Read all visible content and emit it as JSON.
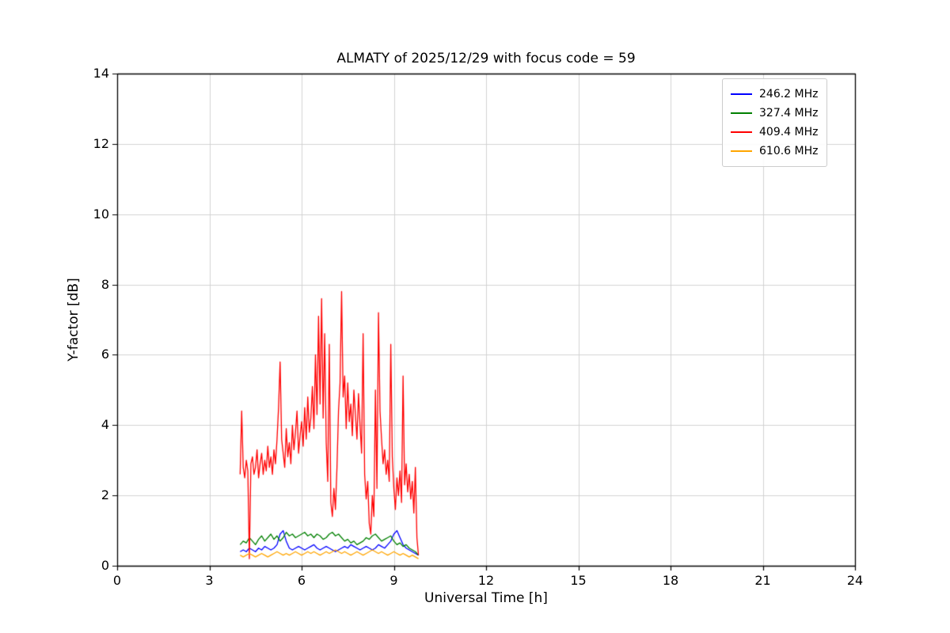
{
  "colors": {
    "background": "#ffffff",
    "axis": "#000000",
    "grid": "#d3d3d3",
    "legend_border": "#cccccc"
  },
  "chart_data": {
    "type": "line",
    "title": "ALMATY of 2025/12/29 with focus code = 59",
    "xlabel": "Universal Time [h]",
    "ylabel": "Y-factor [dB]",
    "xlim": [
      0,
      24
    ],
    "ylim": [
      0,
      14
    ],
    "x_ticks": [
      0,
      3,
      6,
      9,
      12,
      15,
      18,
      21,
      24
    ],
    "y_ticks": [
      0,
      2,
      4,
      6,
      8,
      10,
      12,
      14
    ],
    "grid": true,
    "legend_position": "upper right",
    "series": [
      {
        "name": "246.2 MHz",
        "color": "#0000ff",
        "x": [
          4.0,
          4.1,
          4.2,
          4.3,
          4.4,
          4.5,
          4.6,
          4.7,
          4.8,
          4.9,
          5.0,
          5.1,
          5.2,
          5.3,
          5.4,
          5.5,
          5.6,
          5.7,
          5.8,
          5.9,
          6.0,
          6.1,
          6.2,
          6.3,
          6.4,
          6.5,
          6.6,
          6.7,
          6.8,
          6.9,
          7.0,
          7.1,
          7.2,
          7.3,
          7.4,
          7.5,
          7.6,
          7.7,
          7.8,
          7.9,
          8.0,
          8.1,
          8.2,
          8.3,
          8.4,
          8.5,
          8.6,
          8.7,
          8.8,
          8.9,
          9.0,
          9.1,
          9.2,
          9.3,
          9.4,
          9.5,
          9.6,
          9.7,
          9.8
        ],
        "values": [
          0.4,
          0.45,
          0.4,
          0.5,
          0.45,
          0.4,
          0.5,
          0.45,
          0.55,
          0.5,
          0.45,
          0.5,
          0.6,
          0.9,
          1.0,
          0.7,
          0.5,
          0.45,
          0.5,
          0.55,
          0.5,
          0.45,
          0.5,
          0.55,
          0.6,
          0.5,
          0.45,
          0.5,
          0.55,
          0.5,
          0.45,
          0.4,
          0.45,
          0.5,
          0.55,
          0.5,
          0.6,
          0.55,
          0.5,
          0.45,
          0.5,
          0.55,
          0.5,
          0.45,
          0.5,
          0.6,
          0.55,
          0.5,
          0.6,
          0.7,
          0.9,
          1.0,
          0.8,
          0.6,
          0.5,
          0.45,
          0.4,
          0.35,
          0.3
        ]
      },
      {
        "name": "327.4 MHz",
        "color": "#008000",
        "x": [
          4.0,
          4.1,
          4.2,
          4.3,
          4.4,
          4.5,
          4.6,
          4.7,
          4.8,
          4.9,
          5.0,
          5.1,
          5.2,
          5.3,
          5.4,
          5.5,
          5.6,
          5.7,
          5.8,
          5.9,
          6.0,
          6.1,
          6.2,
          6.3,
          6.4,
          6.5,
          6.6,
          6.7,
          6.8,
          6.9,
          7.0,
          7.1,
          7.2,
          7.3,
          7.4,
          7.5,
          7.6,
          7.7,
          7.8,
          7.9,
          8.0,
          8.1,
          8.2,
          8.3,
          8.4,
          8.5,
          8.6,
          8.7,
          8.8,
          8.9,
          9.0,
          9.1,
          9.2,
          9.3,
          9.4,
          9.5,
          9.6,
          9.7,
          9.8
        ],
        "values": [
          0.6,
          0.7,
          0.65,
          0.8,
          0.7,
          0.6,
          0.75,
          0.85,
          0.7,
          0.8,
          0.9,
          0.75,
          0.85,
          0.7,
          0.8,
          0.95,
          0.85,
          0.9,
          0.8,
          0.85,
          0.9,
          0.95,
          0.85,
          0.9,
          0.8,
          0.9,
          0.85,
          0.75,
          0.8,
          0.9,
          0.95,
          0.85,
          0.9,
          0.8,
          0.7,
          0.75,
          0.65,
          0.7,
          0.6,
          0.65,
          0.7,
          0.8,
          0.75,
          0.85,
          0.9,
          0.8,
          0.7,
          0.75,
          0.8,
          0.85,
          0.7,
          0.6,
          0.65,
          0.55,
          0.6,
          0.5,
          0.45,
          0.4,
          0.3
        ]
      },
      {
        "name": "409.4 MHz",
        "color": "#ff0000",
        "x": [
          4.0,
          4.05,
          4.1,
          4.15,
          4.2,
          4.25,
          4.3,
          4.35,
          4.4,
          4.45,
          4.5,
          4.55,
          4.6,
          4.65,
          4.7,
          4.75,
          4.8,
          4.85,
          4.9,
          4.95,
          5.0,
          5.05,
          5.1,
          5.15,
          5.2,
          5.25,
          5.3,
          5.35,
          5.4,
          5.45,
          5.5,
          5.55,
          5.6,
          5.65,
          5.7,
          5.75,
          5.8,
          5.85,
          5.9,
          5.95,
          6.0,
          6.05,
          6.1,
          6.15,
          6.2,
          6.25,
          6.3,
          6.35,
          6.4,
          6.45,
          6.5,
          6.55,
          6.6,
          6.65,
          6.7,
          6.75,
          6.8,
          6.85,
          6.9,
          6.95,
          7.0,
          7.05,
          7.1,
          7.15,
          7.2,
          7.25,
          7.3,
          7.35,
          7.4,
          7.45,
          7.5,
          7.55,
          7.6,
          7.65,
          7.7,
          7.75,
          7.8,
          7.85,
          7.9,
          7.95,
          8.0,
          8.05,
          8.1,
          8.15,
          8.2,
          8.25,
          8.3,
          8.35,
          8.4,
          8.45,
          8.5,
          8.55,
          8.6,
          8.65,
          8.7,
          8.75,
          8.8,
          8.85,
          8.9,
          8.95,
          9.0,
          9.05,
          9.1,
          9.15,
          9.2,
          9.25,
          9.3,
          9.35,
          9.4,
          9.45,
          9.5,
          9.55,
          9.6,
          9.65,
          9.7,
          9.75,
          9.8
        ],
        "values": [
          2.6,
          4.4,
          2.8,
          2.5,
          3.0,
          2.7,
          0.2,
          2.9,
          3.1,
          2.6,
          2.8,
          3.3,
          2.5,
          2.9,
          3.2,
          2.6,
          3.0,
          2.7,
          3.4,
          2.8,
          3.1,
          2.6,
          3.3,
          2.9,
          3.6,
          4.5,
          5.8,
          3.6,
          3.2,
          2.8,
          3.9,
          3.1,
          3.5,
          2.9,
          4.0,
          3.3,
          3.8,
          4.4,
          3.2,
          3.7,
          4.1,
          3.4,
          4.5,
          3.6,
          4.8,
          3.8,
          4.2,
          5.1,
          3.9,
          6.0,
          4.3,
          7.1,
          4.6,
          7.6,
          4.2,
          6.6,
          3.5,
          2.4,
          6.3,
          1.8,
          1.4,
          2.2,
          1.6,
          2.8,
          4.4,
          5.2,
          7.8,
          4.8,
          5.4,
          3.9,
          5.2,
          4.1,
          4.6,
          3.7,
          5.0,
          4.3,
          3.6,
          4.9,
          4.0,
          3.2,
          6.6,
          2.6,
          1.9,
          2.4,
          1.2,
          0.9,
          2.0,
          1.4,
          5.0,
          2.2,
          7.2,
          4.4,
          3.6,
          2.9,
          3.3,
          2.6,
          3.0,
          2.4,
          6.3,
          3.1,
          2.2,
          1.6,
          2.5,
          2.0,
          2.7,
          1.8,
          5.4,
          2.3,
          2.9,
          2.1,
          2.6,
          1.9,
          2.4,
          1.5,
          2.8,
          0.8,
          0.3
        ]
      },
      {
        "name": "610.6 MHz",
        "color": "#ffa500",
        "x": [
          4.0,
          4.1,
          4.2,
          4.3,
          4.4,
          4.5,
          4.6,
          4.7,
          4.8,
          4.9,
          5.0,
          5.1,
          5.2,
          5.3,
          5.4,
          5.5,
          5.6,
          5.7,
          5.8,
          5.9,
          6.0,
          6.1,
          6.2,
          6.3,
          6.4,
          6.5,
          6.6,
          6.7,
          6.8,
          6.9,
          7.0,
          7.1,
          7.2,
          7.3,
          7.4,
          7.5,
          7.6,
          7.7,
          7.8,
          7.9,
          8.0,
          8.1,
          8.2,
          8.3,
          8.4,
          8.5,
          8.6,
          8.7,
          8.8,
          8.9,
          9.0,
          9.1,
          9.2,
          9.3,
          9.4,
          9.5,
          9.6,
          9.7,
          9.8
        ],
        "values": [
          0.3,
          0.25,
          0.3,
          0.35,
          0.3,
          0.25,
          0.3,
          0.35,
          0.3,
          0.25,
          0.3,
          0.35,
          0.4,
          0.35,
          0.3,
          0.35,
          0.3,
          0.35,
          0.4,
          0.35,
          0.3,
          0.35,
          0.4,
          0.35,
          0.4,
          0.35,
          0.3,
          0.35,
          0.4,
          0.35,
          0.4,
          0.45,
          0.4,
          0.35,
          0.4,
          0.35,
          0.3,
          0.35,
          0.4,
          0.35,
          0.3,
          0.35,
          0.4,
          0.45,
          0.4,
          0.35,
          0.4,
          0.35,
          0.3,
          0.35,
          0.4,
          0.35,
          0.3,
          0.35,
          0.3,
          0.25,
          0.3,
          0.25,
          0.2
        ]
      }
    ]
  }
}
